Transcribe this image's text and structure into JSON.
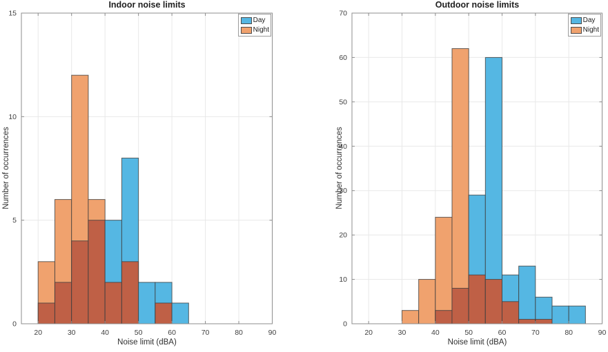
{
  "colors": {
    "day_fill": "#55B7E3",
    "night_fill": "#F0A26E",
    "overlap_fill": "#BF6046",
    "bar_edge": "#3E3E3E",
    "axis_line": "#8C8C8C",
    "grid_line": "#E8E8E8",
    "tick_text": "#3F3F3F",
    "label_text": "#2E2E2E",
    "legend_border": "#9B9B9B",
    "background": "#FFFFFF"
  },
  "chart_data": [
    {
      "type": "bar",
      "chart_kind": "overlaid-histogram",
      "title": "Indoor noise limits",
      "xlabel": "Noise limit (dBA)",
      "ylabel": "Number of occurrences",
      "xlim": [
        15,
        90
      ],
      "ylim": [
        0,
        15
      ],
      "xticks": [
        20,
        30,
        40,
        50,
        60,
        70,
        80,
        90
      ],
      "yticks": [
        0,
        5,
        10,
        15
      ],
      "grid": true,
      "bin_width": 5,
      "bin_starts": [
        20,
        25,
        30,
        35,
        40,
        45,
        50,
        55,
        60
      ],
      "series": [
        {
          "name": "Day",
          "values": [
            1,
            2,
            4,
            5,
            5,
            8,
            2,
            2,
            1
          ]
        },
        {
          "name": "Night",
          "values": [
            3,
            6,
            12,
            6,
            2,
            3,
            0,
            1,
            0
          ]
        }
      ],
      "legend": {
        "position": "top-right",
        "labels": [
          "Day",
          "Night"
        ]
      }
    },
    {
      "type": "bar",
      "chart_kind": "overlaid-histogram",
      "title": "Outdoor noise limits",
      "xlabel": "Noise limit (dBA)",
      "ylabel": "Number of occurrences",
      "xlim": [
        15,
        90
      ],
      "ylim": [
        0,
        70
      ],
      "xticks": [
        20,
        30,
        40,
        50,
        60,
        70,
        80,
        90
      ],
      "yticks": [
        0,
        10,
        20,
        30,
        40,
        50,
        60,
        70
      ],
      "grid": true,
      "bin_width": 5,
      "bin_starts": [
        30,
        35,
        40,
        45,
        50,
        55,
        60,
        65,
        70,
        75,
        80
      ],
      "series": [
        {
          "name": "Day",
          "values": [
            0,
            0,
            3,
            8,
            29,
            60,
            11,
            13,
            6,
            4,
            4
          ]
        },
        {
          "name": "Night",
          "values": [
            3,
            10,
            24,
            62,
            11,
            10,
            5,
            1,
            1,
            0,
            0
          ]
        }
      ],
      "legend": {
        "position": "top-right",
        "labels": [
          "Day",
          "Night"
        ]
      }
    }
  ]
}
